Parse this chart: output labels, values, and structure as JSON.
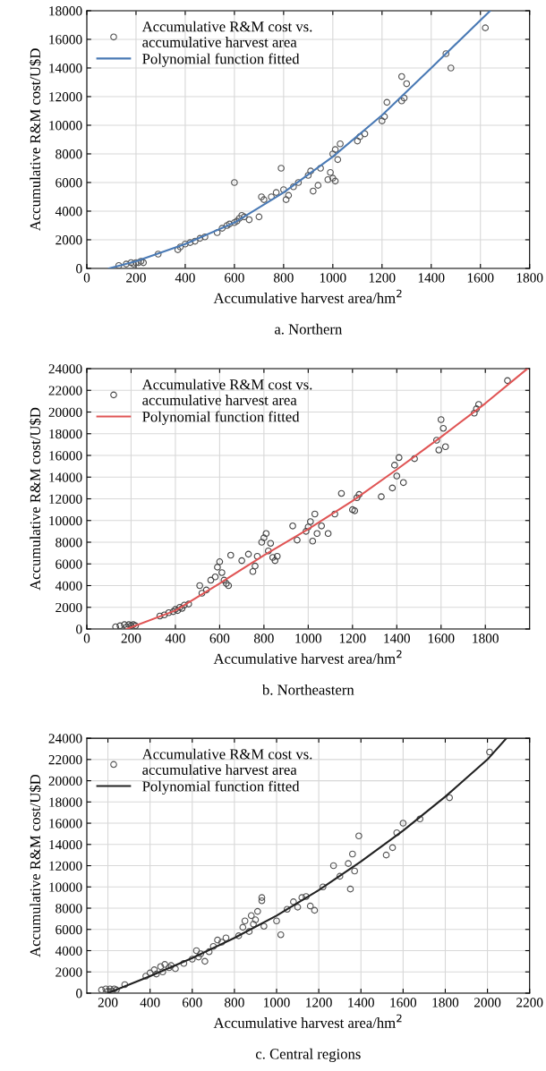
{
  "chart_data": [
    {
      "type": "scatter",
      "xlabel": "Accumulative harvest area/hm$^{2}$",
      "ylabel": "Accumulative R&M cost/U$D",
      "annotations": [
        "a. Northern"
      ],
      "xlim": [
        0,
        1800
      ],
      "xticks": [
        0,
        200,
        400,
        600,
        800,
        1000,
        1200,
        1400,
        1600,
        1800
      ],
      "ylim": [
        0,
        18000
      ],
      "yticks": [
        0,
        2000,
        4000,
        6000,
        8000,
        10000,
        12000,
        14000,
        16000,
        18000
      ],
      "grid": true,
      "legend": "top left",
      "series": [
        {
          "name": "Accumulative R&M cost vs.\naccumulative harvest area",
          "marker": "circle",
          "color": "#555555",
          "x": [
            130,
            160,
            180,
            190,
            200,
            210,
            220,
            230,
            290,
            370,
            380,
            400,
            420,
            440,
            460,
            480,
            530,
            550,
            570,
            580,
            600,
            600,
            610,
            620,
            630,
            640,
            660,
            700,
            710,
            720,
            750,
            770,
            790,
            800,
            810,
            820,
            840,
            860,
            900,
            910,
            920,
            940,
            950,
            980,
            990,
            1000,
            1010,
            1020,
            1030,
            1000,
            1010,
            1100,
            1110,
            1130,
            1200,
            1210,
            1220,
            1280,
            1290,
            1280,
            1300,
            1460,
            1480,
            1620
          ],
          "values": [
            200,
            300,
            400,
            300,
            400,
            400,
            500,
            400,
            1000,
            1300,
            1500,
            1700,
            1800,
            1900,
            2100,
            2200,
            2500,
            2800,
            3000,
            3100,
            6000,
            3200,
            3300,
            3500,
            3700,
            3600,
            3400,
            3600,
            5000,
            4800,
            5000,
            5300,
            7000,
            5500,
            4800,
            5100,
            5700,
            6000,
            6500,
            6800,
            5400,
            5800,
            7000,
            6200,
            6700,
            8000,
            8300,
            7600,
            8700,
            6300,
            6100,
            8900,
            9200,
            9400,
            10300,
            10600,
            11600,
            11700,
            11900,
            13400,
            12900,
            15000,
            14000,
            16800
          ]
        },
        {
          "name": "Polynomial function fitted",
          "type": "line",
          "line_style": "solid",
          "color": "#4a7ab5",
          "x": [
            90,
            200,
            400,
            600,
            800,
            1000,
            1200,
            1400,
            1640
          ],
          "values": [
            0,
            500,
            1700,
            3200,
            5300,
            7800,
            10700,
            14000,
            18000
          ]
        }
      ]
    },
    {
      "type": "scatter",
      "xlabel": "Accumulative harvest area/hm$^{2}$",
      "ylabel": "Accumulative R&M cost/U$D",
      "annotations": [
        "b. Northeastern"
      ],
      "xlim": [
        0,
        2000
      ],
      "xticks": [
        0,
        200,
        400,
        600,
        800,
        1000,
        1200,
        1400,
        1600,
        1800
      ],
      "ylim": [
        0,
        24000
      ],
      "yticks": [
        0,
        2000,
        4000,
        6000,
        8000,
        10000,
        12000,
        14000,
        16000,
        18000,
        20000,
        22000,
        24000
      ],
      "grid": true,
      "legend": "top left",
      "series": [
        {
          "name": "Accumulative R&M cost vs.\naccumulative harvest area",
          "marker": "circle",
          "color": "#444444",
          "x": [
            130,
            150,
            170,
            180,
            190,
            200,
            210,
            220,
            330,
            350,
            370,
            390,
            400,
            410,
            420,
            430,
            440,
            460,
            510,
            520,
            540,
            560,
            580,
            590,
            600,
            610,
            620,
            630,
            640,
            650,
            700,
            730,
            750,
            760,
            770,
            790,
            800,
            810,
            820,
            830,
            840,
            850,
            860,
            930,
            950,
            990,
            1000,
            1010,
            1020,
            1030,
            1040,
            1060,
            1090,
            1120,
            1150,
            1200,
            1210,
            1220,
            1230,
            1330,
            1380,
            1390,
            1400,
            1410,
            1430,
            1480,
            1580,
            1590,
            1600,
            1610,
            1620,
            1750,
            1760,
            1770,
            1900
          ],
          "values": [
            200,
            300,
            400,
            200,
            400,
            300,
            400,
            300,
            1200,
            1300,
            1500,
            1600,
            1800,
            1700,
            2000,
            1900,
            2200,
            2300,
            4000,
            3300,
            3600,
            4500,
            4800,
            5700,
            6200,
            5200,
            4500,
            4200,
            4000,
            6800,
            6300,
            6900,
            5300,
            5800,
            6700,
            8000,
            8400,
            8800,
            7200,
            7900,
            6600,
            6300,
            6700,
            9500,
            8200,
            9000,
            9400,
            9900,
            8100,
            10600,
            8800,
            9500,
            8800,
            10600,
            12500,
            11000,
            10900,
            12100,
            12400,
            12200,
            13000,
            15100,
            14100,
            15800,
            13500,
            15700,
            17400,
            16500,
            19300,
            18500,
            16800,
            19900,
            20300,
            20700,
            22900
          ]
        },
        {
          "name": "Polynomial function fitted",
          "type": "line",
          "line_style": "solid",
          "color": "#e05555",
          "x": [
            180,
            400,
            600,
            800,
            1000,
            1200,
            1400,
            1600,
            1800,
            1990
          ],
          "values": [
            0,
            1700,
            4200,
            6800,
            9200,
            11800,
            14700,
            17700,
            20800,
            24000
          ]
        }
      ]
    },
    {
      "type": "scatter",
      "xlabel": "Accumulative harvest area/hm$^{2}$",
      "ylabel": "Accumulative R&M cost/U$D",
      "annotations": [
        "c. Central regions"
      ],
      "xlim": [
        100,
        2200
      ],
      "xticks": [
        200,
        400,
        600,
        800,
        1000,
        1200,
        1400,
        1600,
        1800,
        2000,
        2200
      ],
      "ylim": [
        0,
        24000
      ],
      "yticks": [
        0,
        2000,
        4000,
        6000,
        8000,
        10000,
        12000,
        14000,
        16000,
        18000,
        20000,
        22000,
        24000
      ],
      "grid": true,
      "legend": "top left",
      "series": [
        {
          "name": "Accumulative R&M cost vs.\naccumulative harvest area",
          "marker": "circle",
          "color": "#555555",
          "x": [
            170,
            190,
            200,
            210,
            220,
            230,
            240,
            280,
            380,
            400,
            420,
            430,
            450,
            460,
            470,
            490,
            500,
            520,
            560,
            600,
            620,
            630,
            640,
            660,
            680,
            700,
            720,
            740,
            760,
            820,
            840,
            850,
            870,
            880,
            890,
            900,
            910,
            930,
            930,
            940,
            1020,
            1000,
            1050,
            1080,
            1100,
            1120,
            1140,
            1160,
            1180,
            1220,
            1270,
            1300,
            1340,
            1350,
            1360,
            1370,
            1390,
            1520,
            1550,
            1570,
            1600,
            1680,
            1820,
            2010
          ],
          "values": [
            300,
            400,
            200,
            400,
            200,
            400,
            300,
            800,
            1600,
            1900,
            2200,
            1800,
            2500,
            2000,
            2700,
            2400,
            2600,
            2300,
            2800,
            3200,
            4000,
            3400,
            3700,
            3000,
            3900,
            4400,
            5000,
            4800,
            5200,
            5400,
            6200,
            6800,
            5800,
            7300,
            6500,
            6900,
            7700,
            8700,
            9000,
            6300,
            5500,
            6800,
            7900,
            8600,
            8100,
            9000,
            9100,
            8200,
            7800,
            10000,
            12000,
            11000,
            12200,
            9800,
            13100,
            11500,
            14800,
            13000,
            13700,
            15100,
            16000,
            16400,
            18400,
            22700
          ]
        },
        {
          "name": "Polynomial function fitted",
          "type": "line",
          "line_style": "solid",
          "color": "#222222",
          "x": [
            200,
            400,
            600,
            800,
            1000,
            1200,
            1400,
            1600,
            1800,
            2000,
            2090
          ],
          "values": [
            0,
            1600,
            3300,
            5200,
            7300,
            9700,
            12400,
            15300,
            18500,
            22000,
            24000
          ]
        }
      ]
    }
  ]
}
